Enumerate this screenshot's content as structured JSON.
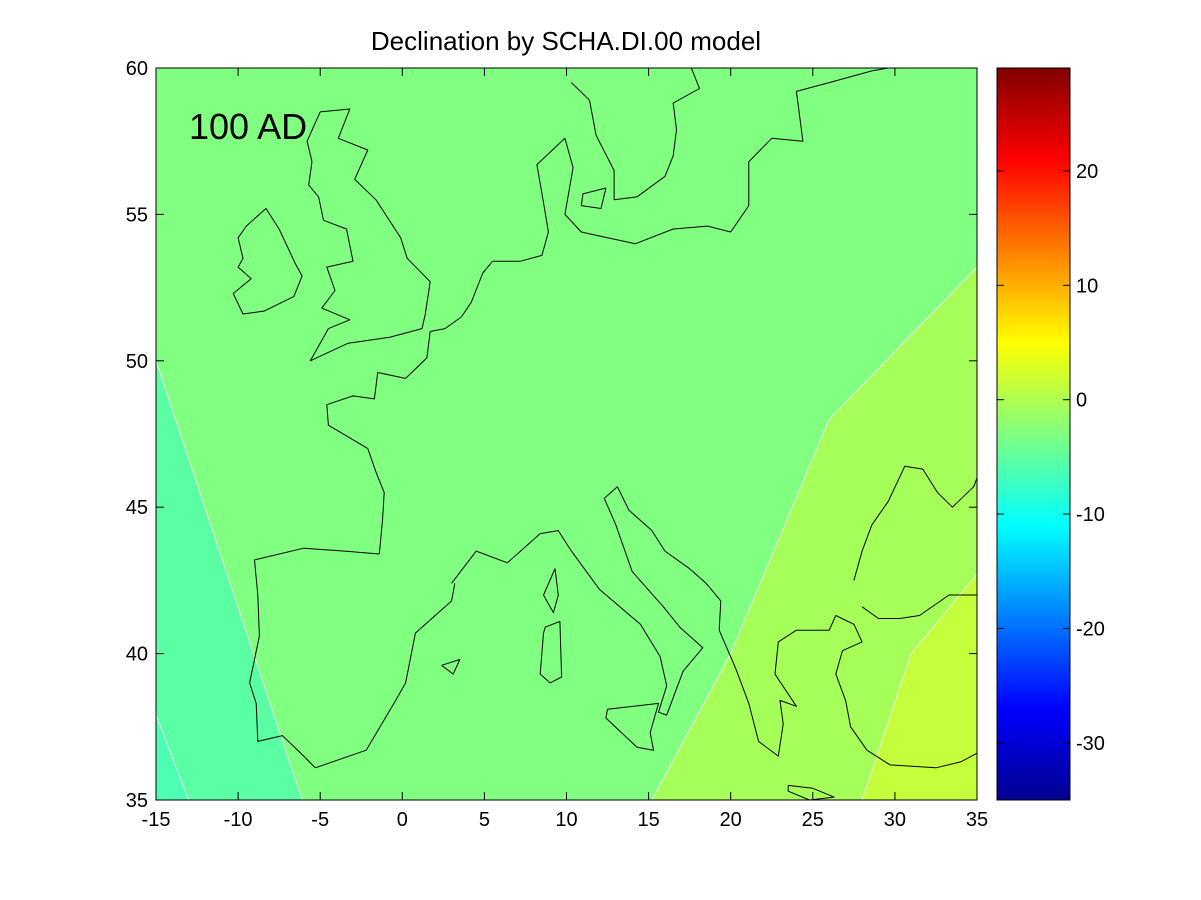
{
  "chart_data": {
    "type": "heatmap",
    "title": "Declination by SCHA.DI.00 model",
    "xlabel": "",
    "ylabel": "",
    "annotation": "100 AD",
    "xlim": [
      -15,
      35
    ],
    "ylim": [
      35,
      60
    ],
    "x_ticks": [
      -15,
      -10,
      -5,
      0,
      5,
      10,
      15,
      20,
      25,
      30,
      35
    ],
    "y_ticks": [
      35,
      40,
      45,
      50,
      55,
      60
    ],
    "colorbar": {
      "colormap": "jet",
      "clim": [
        -35,
        29
      ],
      "ticks": [
        -30,
        -20,
        -10,
        0,
        10,
        20
      ]
    },
    "contour_bands": [
      {
        "level_range": "below -4.5",
        "value": -6,
        "color": "#4dffb2"
      },
      {
        "level_range": "-4.5 to -3",
        "value": -4,
        "color": "#5bffa3"
      },
      {
        "level_range": "-3 to -1",
        "value": -2,
        "color": "#80ff80"
      },
      {
        "level_range": "-1 to 1",
        "value": 0,
        "color": "#a6ff59"
      },
      {
        "level_range": "above 1",
        "value": 2,
        "color": "#c4ff3b"
      }
    ],
    "band_boundaries": [
      {
        "name": "west-1",
        "points": [
          [
            -15,
            37.9
          ],
          [
            -13,
            35
          ]
        ]
      },
      {
        "name": "west-2",
        "points": [
          [
            -15,
            50
          ],
          [
            -6.1,
            35
          ]
        ]
      },
      {
        "name": "east-1",
        "points": [
          [
            15.2,
            35
          ],
          [
            20,
            40
          ],
          [
            26,
            48
          ],
          [
            35,
            53.2
          ]
        ]
      },
      {
        "name": "east-2",
        "points": [
          [
            28,
            35
          ],
          [
            31,
            40
          ],
          [
            35,
            42.7
          ]
        ]
      }
    ],
    "coastlines": [
      [
        [
          -6.5,
          53.3
        ],
        [
          -7.5,
          54.5
        ],
        [
          -8.3,
          55.2
        ],
        [
          -9.5,
          54.6
        ],
        [
          -10,
          54.2
        ],
        [
          -9.7,
          53.5
        ],
        [
          -10,
          53.2
        ],
        [
          -9.2,
          52.8
        ],
        [
          -10.3,
          52.3
        ],
        [
          -9.7,
          51.6
        ],
        [
          -8.4,
          51.7
        ],
        [
          -6.6,
          52.2
        ],
        [
          -6.1,
          52.9
        ],
        [
          -6.5,
          53.3
        ]
      ],
      [
        [
          -5,
          58.5
        ],
        [
          -3.2,
          58.6
        ],
        [
          -3.9,
          57.6
        ],
        [
          -2.1,
          57.2
        ],
        [
          -2.9,
          56.2
        ],
        [
          -1.6,
          55.5
        ],
        [
          -0.1,
          54.2
        ],
        [
          0.3,
          53.5
        ],
        [
          1.7,
          52.7
        ],
        [
          1.4,
          51.6
        ],
        [
          1.2,
          51.1
        ],
        [
          -0.8,
          50.8
        ],
        [
          -3.3,
          50.6
        ],
        [
          -5.6,
          50.0
        ],
        [
          -4.5,
          51.1
        ],
        [
          -3.2,
          51.4
        ],
        [
          -4.9,
          51.8
        ],
        [
          -4.1,
          52.4
        ],
        [
          -4.6,
          53.2
        ],
        [
          -3.0,
          53.4
        ],
        [
          -3.4,
          54.5
        ],
        [
          -4.8,
          54.8
        ],
        [
          -5.1,
          55.6
        ],
        [
          -5.7,
          56.0
        ],
        [
          -5.5,
          56.8
        ],
        [
          -5.8,
          57.5
        ],
        [
          -5,
          58.5
        ]
      ],
      [
        [
          -1.4,
          43.4
        ],
        [
          -1.2,
          44.6
        ],
        [
          -1.1,
          45.5
        ],
        [
          -1.6,
          46.2
        ],
        [
          -2.1,
          47.0
        ],
        [
          -4.5,
          47.8
        ],
        [
          -4.6,
          48.5
        ],
        [
          -3.0,
          48.8
        ],
        [
          -1.7,
          48.7
        ],
        [
          -1.5,
          49.6
        ],
        [
          0.2,
          49.4
        ],
        [
          1.5,
          50.1
        ],
        [
          1.7,
          51.0
        ],
        [
          2.6,
          51.1
        ],
        [
          3.6,
          51.5
        ],
        [
          4.2,
          52.0
        ],
        [
          4.9,
          53.0
        ],
        [
          5.5,
          53.4
        ],
        [
          7.2,
          53.4
        ],
        [
          8.5,
          53.6
        ],
        [
          8.9,
          54.4
        ],
        [
          8.6,
          55.4
        ],
        [
          8.2,
          56.7
        ],
        [
          9.9,
          57.6
        ],
        [
          10.4,
          56.6
        ],
        [
          9.9,
          55.0
        ]
      ],
      [
        [
          9.9,
          55.0
        ],
        [
          10.9,
          54.4
        ],
        [
          12.5,
          54.2
        ],
        [
          14.2,
          54.0
        ],
        [
          16.5,
          54.5
        ],
        [
          18.6,
          54.6
        ],
        [
          20,
          54.4
        ],
        [
          21.1,
          55.3
        ],
        [
          21.1,
          56.8
        ],
        [
          22.5,
          57.6
        ],
        [
          24.4,
          57.5
        ],
        [
          24.0,
          59.2
        ],
        [
          26,
          59.5
        ],
        [
          28.6,
          59.9
        ],
        [
          29.6,
          60.0
        ]
      ],
      [
        [
          10.3,
          59.5
        ],
        [
          11.4,
          58.9
        ],
        [
          11.8,
          57.7
        ],
        [
          12.9,
          56.5
        ],
        [
          12.9,
          55.5
        ],
        [
          14.3,
          55.6
        ],
        [
          16.0,
          56.3
        ],
        [
          16.5,
          57.0
        ],
        [
          16.7,
          57.9
        ],
        [
          16.5,
          58.8
        ],
        [
          18.1,
          59.3
        ],
        [
          17.6,
          60.0
        ]
      ],
      [
        [
          12.4,
          55.9
        ],
        [
          11.0,
          55.7
        ],
        [
          10.9,
          55.3
        ],
        [
          12.1,
          55.2
        ],
        [
          12.4,
          55.9
        ]
      ],
      [
        [
          3.0,
          42.4
        ],
        [
          4.5,
          43.5
        ],
        [
          6.4,
          43.1
        ],
        [
          8.4,
          44.1
        ],
        [
          9.5,
          44.2
        ],
        [
          10.3,
          43.5
        ],
        [
          12.0,
          42.2
        ],
        [
          14.5,
          41.0
        ],
        [
          15.7,
          39.9
        ],
        [
          16.1,
          38.9
        ],
        [
          15.6,
          38.0
        ],
        [
          16.1,
          37.9
        ],
        [
          17.1,
          39.4
        ],
        [
          18.3,
          40.2
        ],
        [
          16.9,
          40.9
        ],
        [
          15.9,
          41.6
        ],
        [
          14.0,
          42.8
        ],
        [
          13.0,
          44.4
        ],
        [
          12.3,
          45.3
        ],
        [
          13.1,
          45.7
        ]
      ],
      [
        [
          13.1,
          45.7
        ],
        [
          13.8,
          44.9
        ],
        [
          15.2,
          44.2
        ],
        [
          16.0,
          43.5
        ],
        [
          17.5,
          42.9
        ],
        [
          18.5,
          42.4
        ],
        [
          19.4,
          41.8
        ],
        [
          19.3,
          40.8
        ],
        [
          20.3,
          39.5
        ],
        [
          21.1,
          38.3
        ],
        [
          21.7,
          37.0
        ],
        [
          22.9,
          36.5
        ],
        [
          23.2,
          37.6
        ],
        [
          23.0,
          38.4
        ],
        [
          24.0,
          38.2
        ],
        [
          22.7,
          39.3
        ],
        [
          22.9,
          40.4
        ],
        [
          24.0,
          40.8
        ],
        [
          26.0,
          40.8
        ],
        [
          26.4,
          41.3
        ]
      ],
      [
        [
          -9.0,
          43.2
        ],
        [
          -8.8,
          42.0
        ],
        [
          -8.7,
          40.6
        ],
        [
          -9.3,
          39.0
        ],
        [
          -8.9,
          38.3
        ],
        [
          -8.8,
          37.0
        ],
        [
          -7.3,
          37.2
        ],
        [
          -6.0,
          36.5
        ],
        [
          -5.3,
          36.1
        ],
        [
          -2.2,
          36.7
        ],
        [
          -0.4,
          38.4
        ],
        [
          0.2,
          39.0
        ],
        [
          0.8,
          40.7
        ],
        [
          3.0,
          41.8
        ],
        [
          3.2,
          42.4
        ]
      ],
      [
        [
          -1.4,
          43.4
        ],
        [
          -3.5,
          43.5
        ],
        [
          -6.0,
          43.6
        ],
        [
          -9.0,
          43.2
        ]
      ],
      [
        [
          8.7,
          40.9
        ],
        [
          9.6,
          41.1
        ],
        [
          9.7,
          39.2
        ],
        [
          9.0,
          39.0
        ],
        [
          8.4,
          39.3
        ],
        [
          8.6,
          40.7
        ],
        [
          8.7,
          40.9
        ]
      ],
      [
        [
          8.6,
          42.0
        ],
        [
          9.3,
          42.9
        ],
        [
          9.5,
          42.0
        ],
        [
          9.2,
          41.4
        ],
        [
          8.6,
          42.0
        ]
      ],
      [
        [
          12.5,
          38.1
        ],
        [
          15.6,
          38.3
        ],
        [
          15.1,
          37.3
        ],
        [
          15.3,
          36.7
        ],
        [
          14.3,
          36.8
        ],
        [
          12.4,
          37.8
        ],
        [
          12.5,
          38.1
        ]
      ],
      [
        [
          2.4,
          39.6
        ],
        [
          3.5,
          39.8
        ],
        [
          3.1,
          39.3
        ],
        [
          2.4,
          39.6
        ]
      ],
      [
        [
          26.4,
          41.3
        ],
        [
          27.5,
          41.0
        ],
        [
          28.0,
          40.4
        ],
        [
          26.8,
          40.1
        ],
        [
          26.4,
          39.3
        ],
        [
          27.0,
          38.4
        ],
        [
          27.3,
          37.5
        ],
        [
          28.3,
          36.7
        ],
        [
          29.7,
          36.2
        ],
        [
          32.5,
          36.1
        ],
        [
          34.0,
          36.3
        ],
        [
          35,
          36.6
        ]
      ],
      [
        [
          27.5,
          42.5
        ],
        [
          28.0,
          43.5
        ],
        [
          28.6,
          44.4
        ],
        [
          29.6,
          45.2
        ],
        [
          30.6,
          46.4
        ],
        [
          31.7,
          46.3
        ],
        [
          32.6,
          45.5
        ],
        [
          33.5,
          45.0
        ],
        [
          34.8,
          45.7
        ],
        [
          35,
          46.0
        ]
      ],
      [
        [
          28.0,
          41.6
        ],
        [
          29.0,
          41.2
        ],
        [
          30.3,
          41.2
        ],
        [
          31.5,
          41.3
        ],
        [
          33.3,
          42.0
        ],
        [
          35,
          42.0
        ]
      ],
      [
        [
          23.5,
          35.5
        ],
        [
          25.0,
          35.4
        ],
        [
          26.3,
          35.1
        ],
        [
          24.8,
          35.0
        ],
        [
          23.5,
          35.3
        ],
        [
          23.5,
          35.5
        ]
      ]
    ]
  }
}
